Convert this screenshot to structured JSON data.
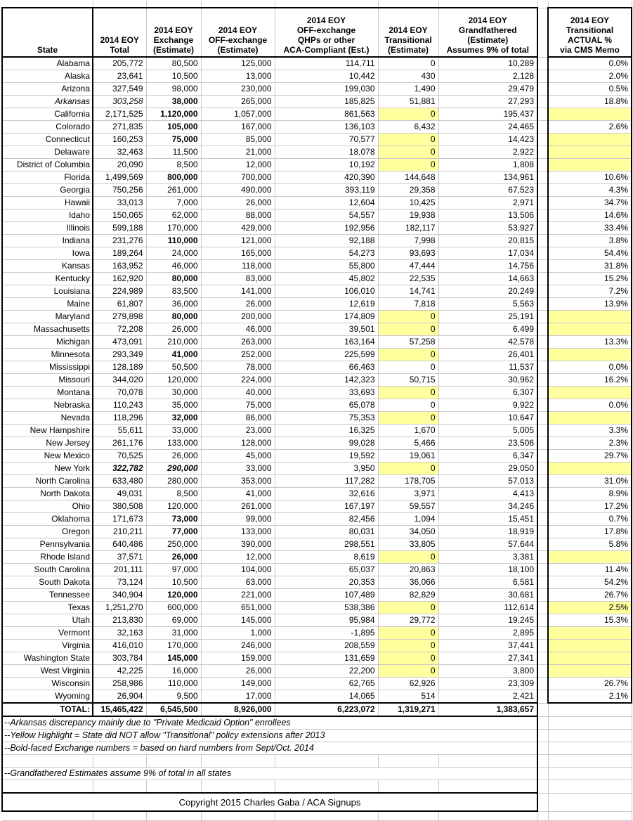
{
  "colors": {
    "highlight": "#ffff9e",
    "gridline": "#c9c9c9",
    "border": "#000000"
  },
  "table": {
    "headers": [
      "State",
      "2014 EOY\nTotal",
      "2014 EOY\nExchange\n(Estimate)",
      "2014 EOY\nOFF-exchange\n(Estimate)",
      "2014 EOY\nOFF-exchange\nQHPs or other\nACA-Compliant (Est.)",
      "2014 EOY\nTransitional\n(Estimate)",
      "2014 EOY\nGrandfathered\n(Estimate)\nAssumes 9% of total",
      "2014 EOY\nTransitional\nACTUAL %\nvia CMS Memo"
    ],
    "rows": [
      {
        "state": "Alabama",
        "total": "205,772",
        "exchange": "80,500",
        "off": "125,000",
        "qhp": "114,711",
        "trans": "0",
        "grand": "10,289",
        "pct": "0.0%",
        "ty": false,
        "py": false
      },
      {
        "state": "Alaska",
        "total": "23,641",
        "exchange": "10,500",
        "off": "13,000",
        "qhp": "10,442",
        "trans": "430",
        "grand": "2,128",
        "pct": "2.0%",
        "ty": false,
        "py": false
      },
      {
        "state": "Arizona",
        "total": "327,549",
        "exchange": "98,000",
        "off": "230,000",
        "qhp": "199,030",
        "trans": "1,490",
        "grand": "29,479",
        "pct": "0.5%",
        "ty": false,
        "py": false
      },
      {
        "state": "Arkansas",
        "total": "303,258",
        "exchange": "38,000",
        "off": "265,000",
        "qhp": "185,825",
        "trans": "51,881",
        "grand": "27,293",
        "pct": "18.8%",
        "ty": false,
        "py": false,
        "styles": {
          "state": "i",
          "total": "i",
          "exchange": "b"
        }
      },
      {
        "state": "California",
        "total": "2,171,525",
        "exchange": "1,120,000",
        "off": "1,057,000",
        "qhp": "861,563",
        "trans": "0",
        "grand": "195,437",
        "pct": "",
        "ty": true,
        "py": true,
        "styles": {
          "exchange": "b"
        }
      },
      {
        "state": "Colorado",
        "total": "271,835",
        "exchange": "105,000",
        "off": "167,000",
        "qhp": "136,103",
        "trans": "6,432",
        "grand": "24,465",
        "pct": "2.6%",
        "ty": false,
        "py": false,
        "styles": {
          "exchange": "b"
        }
      },
      {
        "state": "Connecticut",
        "total": "160,253",
        "exchange": "75,000",
        "off": "85,000",
        "qhp": "70,577",
        "trans": "0",
        "grand": "14,423",
        "pct": "",
        "ty": true,
        "py": true,
        "styles": {
          "exchange": "b"
        }
      },
      {
        "state": "Delaware",
        "total": "32,463",
        "exchange": "11,500",
        "off": "21,000",
        "qhp": "18,078",
        "trans": "0",
        "grand": "2,922",
        "pct": "",
        "ty": true,
        "py": true
      },
      {
        "state": "District of Columbia",
        "total": "20,090",
        "exchange": "8,500",
        "off": "12,000",
        "qhp": "10,192",
        "trans": "0",
        "grand": "1,808",
        "pct": "",
        "ty": true,
        "py": true
      },
      {
        "state": "Florida",
        "total": "1,499,569",
        "exchange": "800,000",
        "off": "700,000",
        "qhp": "420,390",
        "trans": "144,648",
        "grand": "134,961",
        "pct": "10.6%",
        "ty": false,
        "py": false,
        "styles": {
          "exchange": "b"
        }
      },
      {
        "state": "Georgia",
        "total": "750,256",
        "exchange": "261,000",
        "off": "490,000",
        "qhp": "393,119",
        "trans": "29,358",
        "grand": "67,523",
        "pct": "4.3%",
        "ty": false,
        "py": false
      },
      {
        "state": "Hawaii",
        "total": "33,013",
        "exchange": "7,000",
        "off": "26,000",
        "qhp": "12,604",
        "trans": "10,425",
        "grand": "2,971",
        "pct": "34.7%",
        "ty": false,
        "py": false
      },
      {
        "state": "Idaho",
        "total": "150,065",
        "exchange": "62,000",
        "off": "88,000",
        "qhp": "54,557",
        "trans": "19,938",
        "grand": "13,506",
        "pct": "14.6%",
        "ty": false,
        "py": false
      },
      {
        "state": "Illinois",
        "total": "599,188",
        "exchange": "170,000",
        "off": "429,000",
        "qhp": "192,956",
        "trans": "182,117",
        "grand": "53,927",
        "pct": "33.4%",
        "ty": false,
        "py": false
      },
      {
        "state": "Indiana",
        "total": "231,276",
        "exchange": "110,000",
        "off": "121,000",
        "qhp": "92,188",
        "trans": "7,998",
        "grand": "20,815",
        "pct": "3.8%",
        "ty": false,
        "py": false,
        "styles": {
          "exchange": "b"
        }
      },
      {
        "state": "Iowa",
        "total": "189,264",
        "exchange": "24,000",
        "off": "165,000",
        "qhp": "54,273",
        "trans": "93,693",
        "grand": "17,034",
        "pct": "54.4%",
        "ty": false,
        "py": false
      },
      {
        "state": "Kansas",
        "total": "163,952",
        "exchange": "46,000",
        "off": "118,000",
        "qhp": "55,800",
        "trans": "47,444",
        "grand": "14,756",
        "pct": "31.8%",
        "ty": false,
        "py": false
      },
      {
        "state": "Kentucky",
        "total": "162,920",
        "exchange": "80,000",
        "off": "83,000",
        "qhp": "45,802",
        "trans": "22,535",
        "grand": "14,663",
        "pct": "15.2%",
        "ty": false,
        "py": false,
        "styles": {
          "exchange": "b"
        }
      },
      {
        "state": "Louisiana",
        "total": "224,989",
        "exchange": "83,500",
        "off": "141,000",
        "qhp": "106,010",
        "trans": "14,741",
        "grand": "20,249",
        "pct": "7.2%",
        "ty": false,
        "py": false
      },
      {
        "state": "Maine",
        "total": "61,807",
        "exchange": "36,000",
        "off": "26,000",
        "qhp": "12,619",
        "trans": "7,818",
        "grand": "5,563",
        "pct": "13.9%",
        "ty": false,
        "py": false
      },
      {
        "state": "Maryland",
        "total": "279,898",
        "exchange": "80,000",
        "off": "200,000",
        "qhp": "174,809",
        "trans": "0",
        "grand": "25,191",
        "pct": "",
        "ty": true,
        "py": true,
        "styles": {
          "exchange": "b"
        }
      },
      {
        "state": "Massachusetts",
        "total": "72,208",
        "exchange": "26,000",
        "off": "46,000",
        "qhp": "39,501",
        "trans": "0",
        "grand": "6,499",
        "pct": "",
        "ty": true,
        "py": true
      },
      {
        "state": "Michigan",
        "total": "473,091",
        "exchange": "210,000",
        "off": "263,000",
        "qhp": "163,164",
        "trans": "57,258",
        "grand": "42,578",
        "pct": "13.3%",
        "ty": false,
        "py": false
      },
      {
        "state": "Minnesota",
        "total": "293,349",
        "exchange": "41,000",
        "off": "252,000",
        "qhp": "225,599",
        "trans": "0",
        "grand": "26,401",
        "pct": "",
        "ty": true,
        "py": true,
        "styles": {
          "exchange": "b"
        }
      },
      {
        "state": "Mississippi",
        "total": "128,189",
        "exchange": "50,500",
        "off": "78,000",
        "qhp": "66,463",
        "trans": "0",
        "grand": "11,537",
        "pct": "0.0%",
        "ty": false,
        "py": false
      },
      {
        "state": "Missouri",
        "total": "344,020",
        "exchange": "120,000",
        "off": "224,000",
        "qhp": "142,323",
        "trans": "50,715",
        "grand": "30,962",
        "pct": "16.2%",
        "ty": false,
        "py": false
      },
      {
        "state": "Montana",
        "total": "70,078",
        "exchange": "30,000",
        "off": "40,000",
        "qhp": "33,693",
        "trans": "0",
        "grand": "6,307",
        "pct": "",
        "ty": true,
        "py": true
      },
      {
        "state": "Nebraska",
        "total": "110,243",
        "exchange": "35,000",
        "off": "75,000",
        "qhp": "65,078",
        "trans": "0",
        "grand": "9,922",
        "pct": "0.0%",
        "ty": false,
        "py": false
      },
      {
        "state": "Nevada",
        "total": "118,296",
        "exchange": "32,000",
        "off": "86,000",
        "qhp": "75,353",
        "trans": "0",
        "grand": "10,647",
        "pct": "",
        "ty": true,
        "py": true,
        "styles": {
          "exchange": "b"
        }
      },
      {
        "state": "New Hampshire",
        "total": "55,611",
        "exchange": "33,000",
        "off": "23,000",
        "qhp": "16,325",
        "trans": "1,670",
        "grand": "5,005",
        "pct": "3.3%",
        "ty": false,
        "py": false
      },
      {
        "state": "New Jersey",
        "total": "261,176",
        "exchange": "133,000",
        "off": "128,000",
        "qhp": "99,028",
        "trans": "5,466",
        "grand": "23,506",
        "pct": "2.3%",
        "ty": false,
        "py": false
      },
      {
        "state": "New Mexico",
        "total": "70,525",
        "exchange": "26,000",
        "off": "45,000",
        "qhp": "19,592",
        "trans": "19,061",
        "grand": "6,347",
        "pct": "29.7%",
        "ty": false,
        "py": false
      },
      {
        "state": "New York",
        "total": "322,782",
        "exchange": "290,000",
        "off": "33,000",
        "qhp": "3,950",
        "trans": "0",
        "grand": "29,050",
        "pct": "",
        "ty": true,
        "py": true,
        "styles": {
          "total": "bi",
          "exchange": "bi"
        }
      },
      {
        "state": "North Carolina",
        "total": "633,480",
        "exchange": "280,000",
        "off": "353,000",
        "qhp": "117,282",
        "trans": "178,705",
        "grand": "57,013",
        "pct": "31.0%",
        "ty": false,
        "py": false
      },
      {
        "state": "North Dakota",
        "total": "49,031",
        "exchange": "8,500",
        "off": "41,000",
        "qhp": "32,616",
        "trans": "3,971",
        "grand": "4,413",
        "pct": "8.9%",
        "ty": false,
        "py": false
      },
      {
        "state": "Ohio",
        "total": "380,508",
        "exchange": "120,000",
        "off": "261,000",
        "qhp": "167,197",
        "trans": "59,557",
        "grand": "34,246",
        "pct": "17.2%",
        "ty": false,
        "py": false
      },
      {
        "state": "Oklahoma",
        "total": "171,673",
        "exchange": "73,000",
        "off": "99,000",
        "qhp": "82,456",
        "trans": "1,094",
        "grand": "15,451",
        "pct": "0.7%",
        "ty": false,
        "py": false,
        "styles": {
          "exchange": "b"
        }
      },
      {
        "state": "Oregon",
        "total": "210,211",
        "exchange": "77,000",
        "off": "133,000",
        "qhp": "80,031",
        "trans": "34,050",
        "grand": "18,919",
        "pct": "17.8%",
        "ty": false,
        "py": false,
        "styles": {
          "exchange": "b"
        }
      },
      {
        "state": "Pennsylvania",
        "total": "640,486",
        "exchange": "250,000",
        "off": "390,000",
        "qhp": "298,551",
        "trans": "33,805",
        "grand": "57,644",
        "pct": "5.8%",
        "ty": false,
        "py": false
      },
      {
        "state": "Rhode Island",
        "total": "37,571",
        "exchange": "26,000",
        "off": "12,000",
        "qhp": "8,619",
        "trans": "0",
        "grand": "3,381",
        "pct": "",
        "ty": true,
        "py": true,
        "styles": {
          "exchange": "b"
        }
      },
      {
        "state": "South Carolina",
        "total": "201,111",
        "exchange": "97,000",
        "off": "104,000",
        "qhp": "65,037",
        "trans": "20,863",
        "grand": "18,100",
        "pct": "11.4%",
        "ty": false,
        "py": false
      },
      {
        "state": "South Dakota",
        "total": "73,124",
        "exchange": "10,500",
        "off": "63,000",
        "qhp": "20,353",
        "trans": "36,066",
        "grand": "6,581",
        "pct": "54.2%",
        "ty": false,
        "py": false
      },
      {
        "state": "Tennessee",
        "total": "340,904",
        "exchange": "120,000",
        "off": "221,000",
        "qhp": "107,489",
        "trans": "82,829",
        "grand": "30,681",
        "pct": "26.7%",
        "ty": false,
        "py": false,
        "styles": {
          "exchange": "b"
        }
      },
      {
        "state": "Texas",
        "total": "1,251,270",
        "exchange": "600,000",
        "off": "651,000",
        "qhp": "538,386",
        "trans": "0",
        "grand": "112,614",
        "pct": "2.5%",
        "ty": true,
        "py": true
      },
      {
        "state": "Utah",
        "total": "213,830",
        "exchange": "69,000",
        "off": "145,000",
        "qhp": "95,984",
        "trans": "29,772",
        "grand": "19,245",
        "pct": "15.3%",
        "ty": false,
        "py": false
      },
      {
        "state": "Vermont",
        "total": "32,163",
        "exchange": "31,000",
        "off": "1,000",
        "qhp": "-1,895",
        "trans": "0",
        "grand": "2,895",
        "pct": "",
        "ty": true,
        "py": true
      },
      {
        "state": "Virginia",
        "total": "416,010",
        "exchange": "170,000",
        "off": "246,000",
        "qhp": "208,559",
        "trans": "0",
        "grand": "37,441",
        "pct": "",
        "ty": true,
        "py": true
      },
      {
        "state": "Washington State",
        "total": "303,784",
        "exchange": "145,000",
        "off": "159,000",
        "qhp": "131,659",
        "trans": "0",
        "grand": "27,341",
        "pct": "",
        "ty": true,
        "py": true,
        "styles": {
          "exchange": "b"
        }
      },
      {
        "state": "West Virginia",
        "total": "42,225",
        "exchange": "16,000",
        "off": "26,000",
        "qhp": "22,200",
        "trans": "0",
        "grand": "3,800",
        "pct": "",
        "ty": true,
        "py": true
      },
      {
        "state": "Wisconsin",
        "total": "258,986",
        "exchange": "110,000",
        "off": "149,000",
        "qhp": "62,765",
        "trans": "62,926",
        "grand": "23,309",
        "pct": "26.7%",
        "ty": false,
        "py": false
      },
      {
        "state": "Wyoming",
        "total": "26,904",
        "exchange": "9,500",
        "off": "17,000",
        "qhp": "14,065",
        "trans": "514",
        "grand": "2,421",
        "pct": "2.1%",
        "ty": false,
        "py": false
      }
    ],
    "total_row": {
      "label": "TOTAL:",
      "total": "15,465,422",
      "exchange": "6,545,500",
      "off": "8,926,000",
      "qhp": "6,223,072",
      "trans": "1,319,271",
      "grand": "1,383,657"
    }
  },
  "footnotes": [
    "--Arkansas discrepancy mainly due to \"Private Medicaid Option\" enrollees",
    "--Yellow Highlight = State did NOT allow \"Transitional\" policy extensions after 2013",
    "--Bold-faced Exchange numbers = based on hard numbers from Sept/Oct. 2014",
    "",
    "--Grandfathered Estimates assume 9% of total in all states",
    ""
  ],
  "copyright": "Copyright 2015 Charles Gaba / ACA Signups"
}
